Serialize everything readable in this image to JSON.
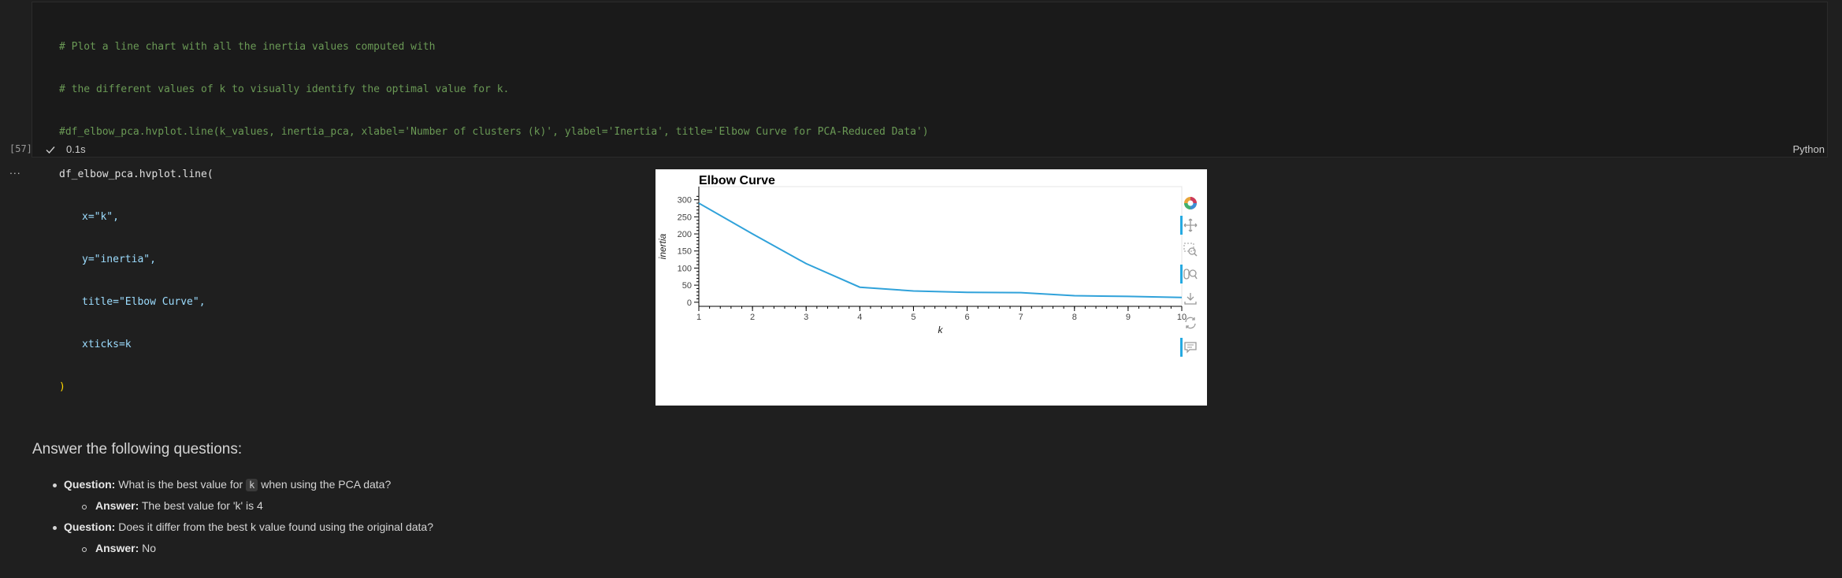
{
  "cell": {
    "code_lines": [
      "# Plot a line chart with all the inertia values computed with",
      "# the different values of k to visually identify the optimal value for k.",
      "#df_elbow_pca.hvplot.line(k_values, inertia_pca, xlabel='Number of clusters (k)', ylabel='Inertia', title='Elbow Curve for PCA-Reduced Data')",
      "df_elbow_pca.hvplot.line(",
      "x=\"k\",",
      "y=\"inertia\",",
      "title=\"Elbow Curve\",",
      "xticks=k",
      ")"
    ],
    "exec_count": "[57]",
    "duration": "0.1s",
    "language": "Python",
    "more": "..."
  },
  "chart_data": {
    "type": "line",
    "title": "Elbow Curve",
    "xlabel": "k",
    "ylabel": "inertia",
    "x": [
      1,
      2,
      3,
      4,
      5,
      6,
      7,
      8,
      9,
      10
    ],
    "series": [
      {
        "values": [
          290,
          200,
          113,
          44,
          33,
          29,
          28,
          19,
          17,
          14
        ],
        "color": "#30a2da"
      }
    ],
    "xlim": [
      1,
      10
    ],
    "ylim": [
      -12,
      320
    ],
    "xticks": [
      "1",
      "2",
      "3",
      "4",
      "5",
      "6",
      "7",
      "8",
      "9",
      "10"
    ],
    "yticks": [
      "0",
      "50",
      "100",
      "150",
      "200",
      "250",
      "300"
    ],
    "grid": false,
    "toolbar": [
      "bokeh-logo-icon",
      "pan-icon",
      "box-zoom-icon",
      "wheel-zoom-icon",
      "save-icon",
      "reset-icon",
      "hover-icon"
    ]
  },
  "markdown": {
    "heading": "Answer the following questions:",
    "q1_label": "Question:",
    "q1_pre": "What is the best value for",
    "q1_code": "k",
    "q1_post": "when using the PCA data?",
    "a1_label": "Answer:",
    "a1_text": "The best value for 'k' is 4",
    "q2_label": "Question:",
    "q2_text": "Does it differ from the best k value found using the original data?",
    "a2_label": "Answer:",
    "a2_text": "No"
  }
}
